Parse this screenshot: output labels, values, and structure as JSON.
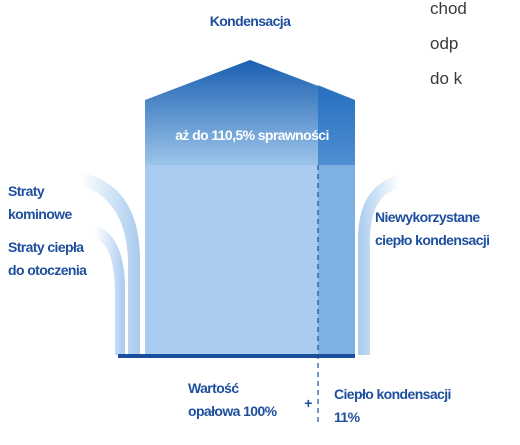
{
  "title": "Kondensacja",
  "side_text": [
    "chod",
    "odp",
    "do k"
  ],
  "roof_label": "aż do 110,5% sprawności",
  "left_labels": [
    [
      "Straty",
      "kominowe"
    ],
    [
      "Straty ciepła",
      "do otoczenia"
    ]
  ],
  "right_label": [
    "Niewykorzystane",
    "ciepło kondensacji"
  ],
  "bottom": {
    "left": [
      "Wartość",
      "opałowa 100%"
    ],
    "plus": "+",
    "right": [
      "Ciepło kondensacji",
      "11%"
    ]
  }
}
